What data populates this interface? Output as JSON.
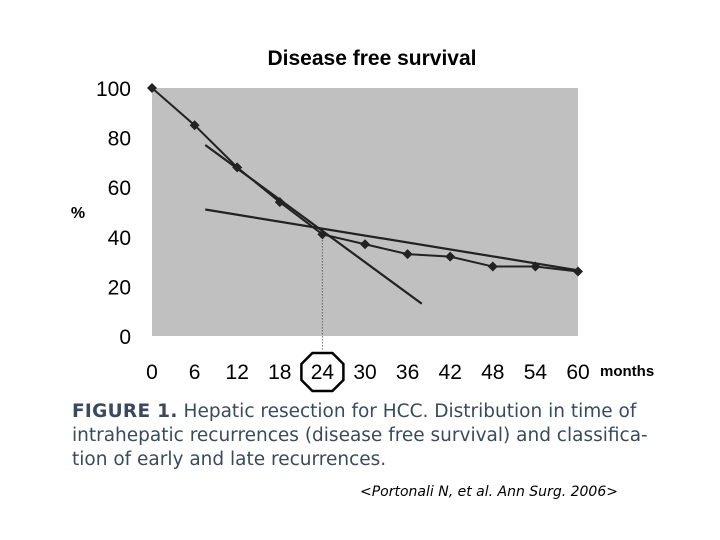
{
  "chart_data": {
    "type": "line",
    "title": "Disease free survival",
    "ylabel": "%",
    "xlabel": "months",
    "x": [
      0,
      6,
      12,
      18,
      24,
      30,
      36,
      42,
      48,
      54,
      60
    ],
    "xticks": [
      "0",
      "6",
      "12",
      "18",
      "24",
      "30",
      "36",
      "42",
      "48",
      "54",
      "60"
    ],
    "xlim": [
      0,
      60
    ],
    "yticks": [
      "0",
      "20",
      "40",
      "60",
      "80",
      "100"
    ],
    "ylim": [
      0,
      100
    ],
    "highlighted_xtick": "24",
    "grid": false,
    "plot_background": "#c0c0c0",
    "series": [
      {
        "values": [
          100,
          85,
          68,
          54,
          41,
          37,
          33,
          32,
          28,
          28,
          26
        ]
      }
    ],
    "trend_lines": [
      {
        "x": [
          7.5,
          38
        ],
        "y": [
          77,
          13
        ]
      },
      {
        "x": [
          7.5,
          60
        ],
        "y": [
          51,
          26.5
        ]
      }
    ],
    "reference_line": {
      "x": 24,
      "y": 41
    }
  },
  "caption": {
    "label": "FIGURE 1.",
    "lines": [
      "Hepatic resection for HCC. Distribution in time of",
      "intrahepatic recurrences (disease free survival) and classifica-",
      "tion of early and late recurrences."
    ]
  },
  "citation": "<Portonali N, et al. Ann Surg. 2006>"
}
